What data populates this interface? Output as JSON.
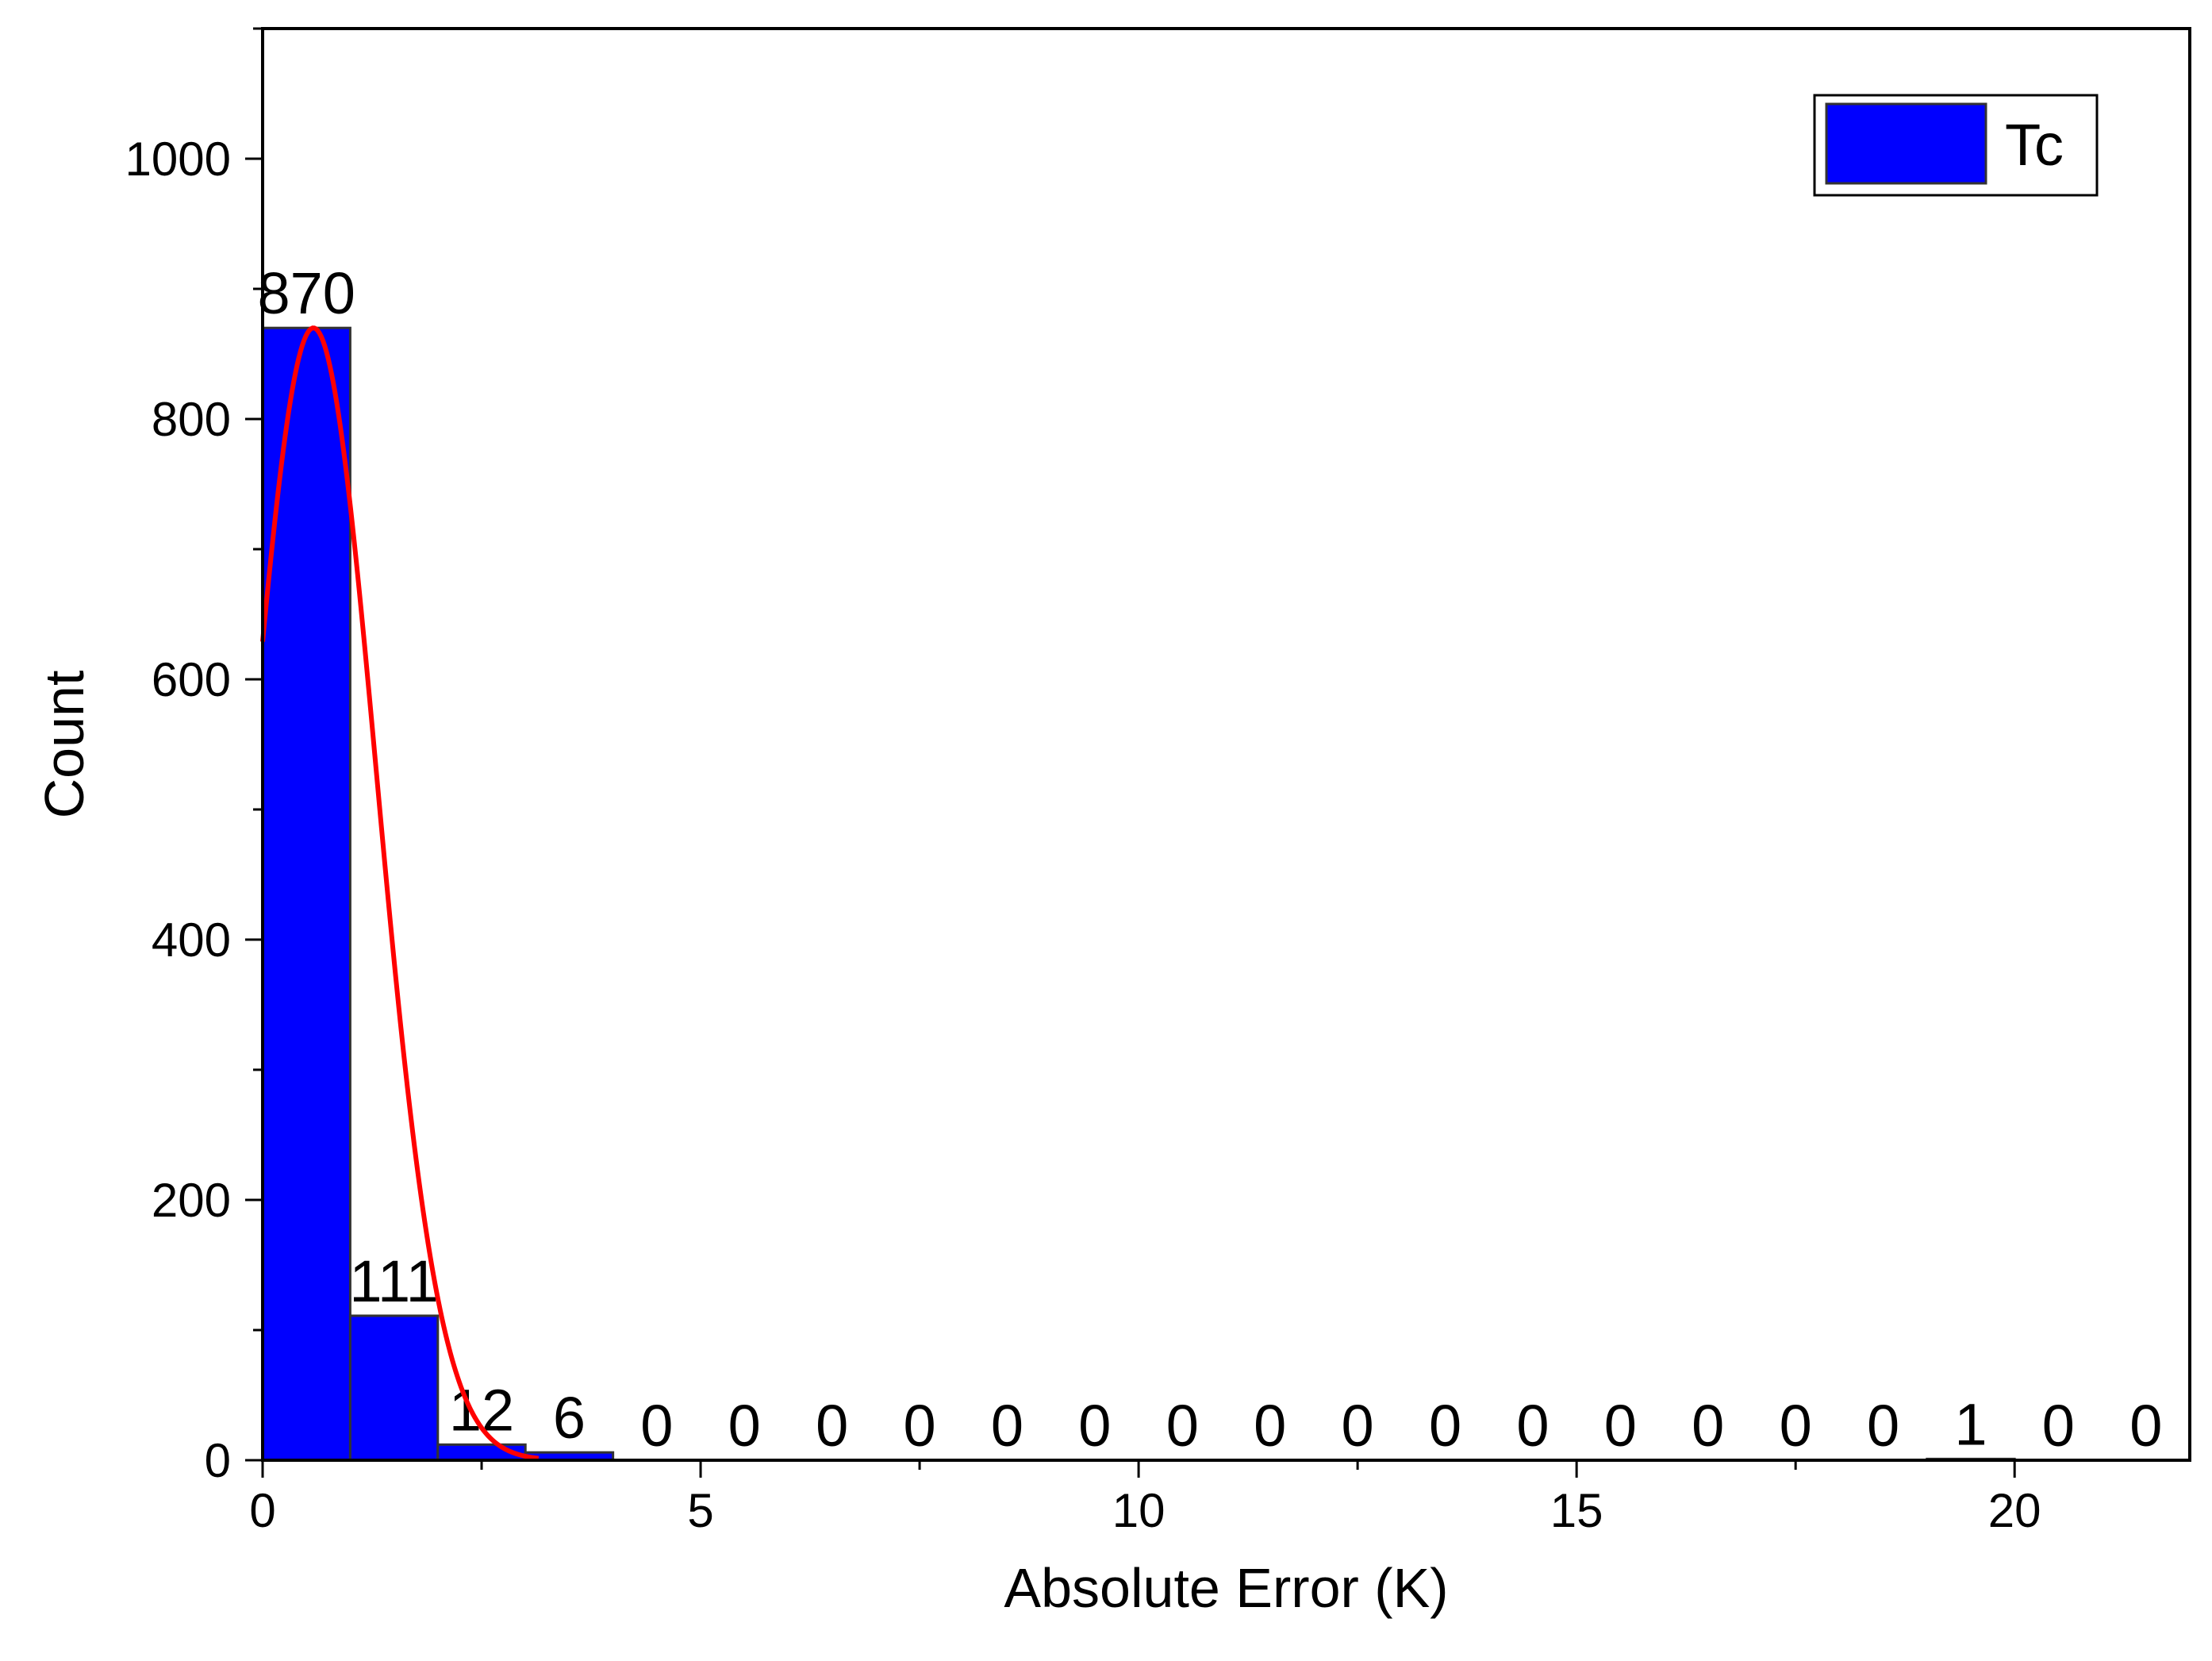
{
  "chart_data": {
    "type": "bar",
    "title": "",
    "xlabel": "Absolute Error (K)",
    "ylabel": "Count",
    "bin_edges": [
      0,
      1,
      2,
      3,
      4,
      5,
      6,
      7,
      8,
      9,
      10,
      11,
      12,
      13,
      14,
      15,
      16,
      17,
      18,
      19,
      20,
      21,
      22
    ],
    "values": [
      870,
      111,
      12,
      6,
      0,
      0,
      0,
      0,
      0,
      0,
      0,
      0,
      0,
      0,
      0,
      0,
      0,
      0,
      0,
      1,
      0,
      0
    ],
    "series": [
      {
        "name": "Tc",
        "values": [
          870,
          111,
          12,
          6,
          0,
          0,
          0,
          0,
          0,
          0,
          0,
          0,
          0,
          0,
          0,
          0,
          0,
          0,
          0,
          1,
          0,
          0
        ],
        "color": "#0000ff"
      }
    ],
    "fit_curve": {
      "type": "gaussian",
      "color": "#ff0000",
      "peak": 870,
      "center": 0.58,
      "sigma": 0.72,
      "x_range": [
        0,
        3.15
      ]
    },
    "xlim": [
      0,
      22
    ],
    "ylim": [
      0,
      1100
    ],
    "xticks": [
      0,
      5,
      10,
      15,
      20
    ],
    "xtick_labels": [
      "0",
      "5",
      "10",
      "15",
      "20"
    ],
    "yticks": [
      0,
      200,
      400,
      600,
      800,
      1000
    ],
    "ytick_labels": [
      "0",
      "200",
      "400",
      "600",
      "800",
      "1000"
    ],
    "grid": false,
    "legend_position": "top-right",
    "colors": {
      "bar": "#0000ff",
      "bar_edge": "#333333",
      "fit": "#ff0000",
      "axis": "#000000"
    }
  }
}
